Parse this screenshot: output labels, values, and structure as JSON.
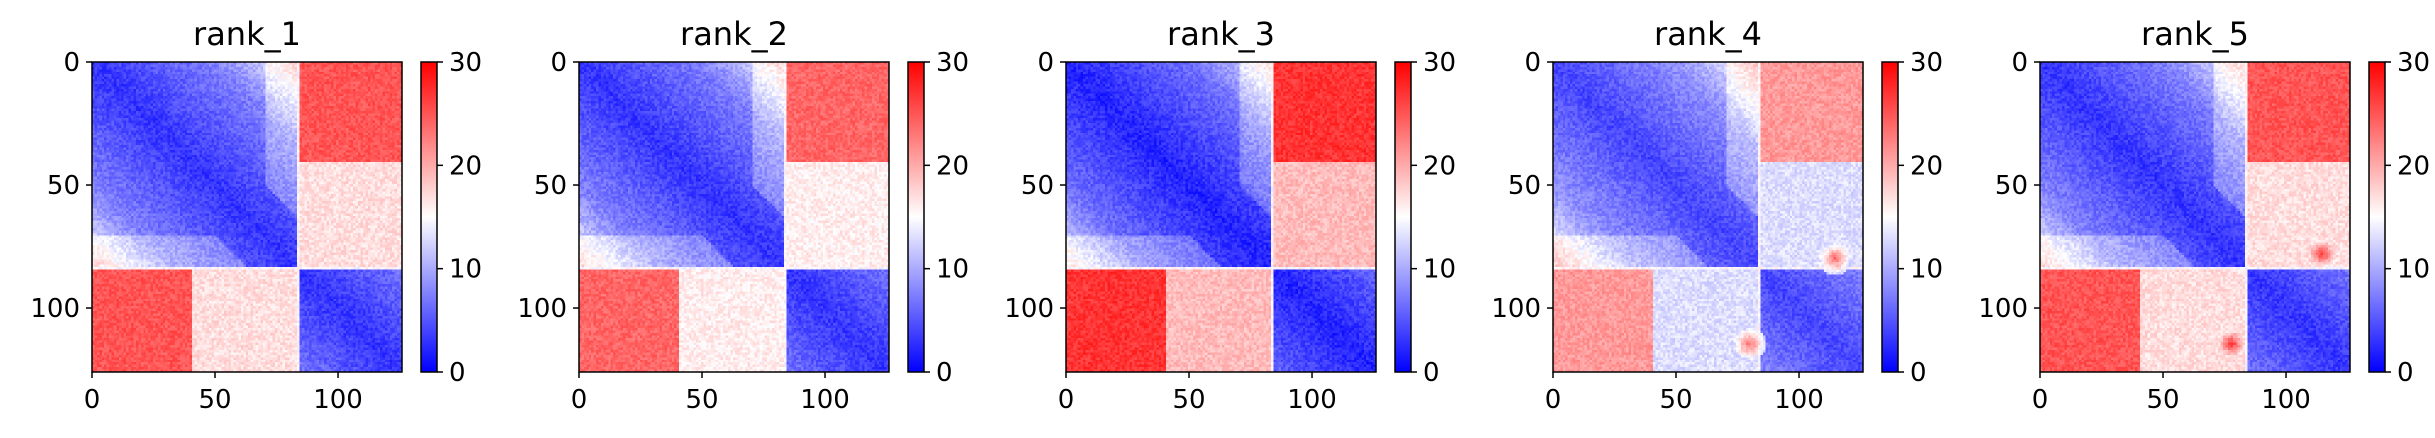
{
  "chart_data": [
    {
      "type": "heatmap",
      "title": "rank_1",
      "matrix_size": 127,
      "x_ticks": [
        "0",
        "50",
        "100"
      ],
      "y_ticks": [
        "0",
        "50",
        "100"
      ],
      "colormap": "bwr",
      "colorbar_range": [
        0,
        30
      ],
      "colorbar_ticks": [
        "0",
        "10",
        "20",
        "30"
      ],
      "domain_boundary": 84,
      "intra_domain_value": 3,
      "inter_domain_value": 25,
      "hotspots": []
    },
    {
      "type": "heatmap",
      "title": "rank_2",
      "matrix_size": 127,
      "x_ticks": [
        "0",
        "50",
        "100"
      ],
      "y_ticks": [
        "0",
        "50",
        "100"
      ],
      "colormap": "bwr",
      "colorbar_range": [
        0,
        30
      ],
      "colorbar_ticks": [
        "0",
        "10",
        "20",
        "30"
      ],
      "domain_boundary": 84,
      "intra_domain_value": 3,
      "inter_domain_value": 24,
      "hotspots": []
    },
    {
      "type": "heatmap",
      "title": "rank_3",
      "matrix_size": 127,
      "x_ticks": [
        "0",
        "50",
        "100"
      ],
      "y_ticks": [
        "0",
        "50",
        "100"
      ],
      "colormap": "bwr",
      "colorbar_range": [
        0,
        30
      ],
      "colorbar_ticks": [
        "0",
        "10",
        "20",
        "30"
      ],
      "domain_boundary": 84,
      "intra_domain_value": 2,
      "inter_domain_value": 27,
      "hotspots": []
    },
    {
      "type": "heatmap",
      "title": "rank_4",
      "matrix_size": 127,
      "x_ticks": [
        "0",
        "50",
        "100"
      ],
      "y_ticks": [
        "0",
        "50",
        "100"
      ],
      "colormap": "bwr",
      "colorbar_range": [
        0,
        30
      ],
      "colorbar_ticks": [
        "0",
        "10",
        "20",
        "30"
      ],
      "domain_boundary": 84,
      "intra_domain_value": 4,
      "inter_domain_value": 21,
      "hotspots": [
        {
          "row": 115,
          "col": 80,
          "value": 24
        }
      ]
    },
    {
      "type": "heatmap",
      "title": "rank_5",
      "matrix_size": 127,
      "x_ticks": [
        "0",
        "50",
        "100"
      ],
      "y_ticks": [
        "0",
        "50",
        "100"
      ],
      "colormap": "bwr",
      "colorbar_range": [
        0,
        30
      ],
      "colorbar_ticks": [
        "0",
        "10",
        "20",
        "30"
      ],
      "domain_boundary": 84,
      "intra_domain_value": 3,
      "inter_domain_value": 25,
      "hotspots": [
        {
          "row": 115,
          "col": 78,
          "value": 27
        }
      ]
    }
  ]
}
